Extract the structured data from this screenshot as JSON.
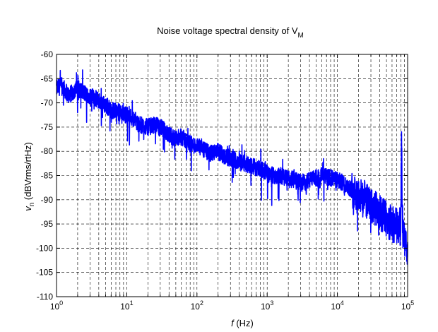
{
  "chart_data": {
    "type": "line",
    "title": "Noise voltage spectral density of V",
    "title_subscript": "M",
    "xlabel_italic": "f",
    "xlabel_rest": " (Hz)",
    "ylabel_italic": "v",
    "ylabel_sub": "n",
    "ylabel_rest": " (dBVrms/rtHz)",
    "x_scale": "log",
    "xlim": [
      1,
      100000
    ],
    "ylim": [
      -110,
      -60
    ],
    "grid": true,
    "grid_style": "dashed",
    "line_color": "#0000ff",
    "x_tick_base": "10",
    "x_tick_exponents": [
      "0",
      "1",
      "2",
      "3",
      "4",
      "5"
    ],
    "y_ticks": [
      "-60",
      "-65",
      "-70",
      "-75",
      "-80",
      "-85",
      "-90",
      "-95",
      "-100",
      "-105",
      "-110"
    ],
    "series": [
      {
        "x": [
          1,
          1.2,
          1.5,
          2,
          2.5,
          3,
          4,
          5,
          6,
          8,
          10,
          12,
          15,
          20,
          25,
          30,
          40,
          50,
          60,
          80,
          100,
          120,
          150,
          200,
          250,
          300,
          400,
          500,
          600,
          800,
          1000,
          1200,
          1500,
          2000,
          2500,
          3000,
          4000,
          5000,
          6000,
          8000,
          10000,
          12000,
          15000,
          20000,
          25000,
          30000,
          40000,
          50000,
          60000,
          70000,
          80000,
          82000,
          84000,
          86000,
          90000,
          95000,
          100000
        ],
        "y": [
          -67,
          -66.5,
          -68.5,
          -67,
          -68,
          -68.5,
          -69.5,
          -70.5,
          -71.5,
          -72,
          -72.5,
          -73,
          -74.5,
          -75,
          -74.5,
          -75,
          -76.5,
          -77.5,
          -77,
          -78.5,
          -79,
          -79.5,
          -80.5,
          -80,
          -81,
          -81.5,
          -82,
          -82.5,
          -83,
          -83.5,
          -84.5,
          -85,
          -85,
          -85.5,
          -86,
          -86.5,
          -86,
          -85.5,
          -85,
          -85.5,
          -86,
          -86.5,
          -87.5,
          -89,
          -90,
          -91.5,
          -92.5,
          -94,
          -95,
          -95.5,
          -96,
          -73,
          -94,
          -97,
          -98.5,
          -99.5,
          -101
        ]
      }
    ]
  }
}
